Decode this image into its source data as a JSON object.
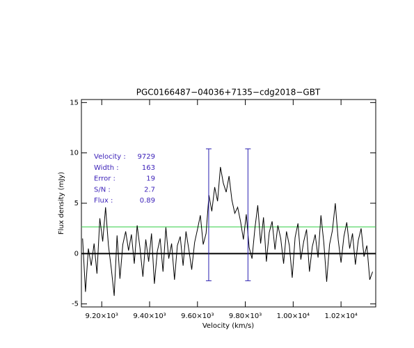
{
  "chart_data": {
    "type": "line",
    "title": "PGC0166487−04036+7135−cdg2018−GBT",
    "x_label": "Velocity (km/s)",
    "y_label": "Flux density (mJy)",
    "xlim": [
      9115,
      10345
    ],
    "ylim": [
      -5.3,
      15.3
    ],
    "xticks": [
      {
        "value": 9200,
        "label": "9.20×10³"
      },
      {
        "value": 9400,
        "label": "9.40×10³"
      },
      {
        "value": 9600,
        "label": "9.60×10³"
      },
      {
        "value": 9800,
        "label": "9.80×10³"
      },
      {
        "value": 10000,
        "label": "1.00×10⁴"
      },
      {
        "value": 10200,
        "label": "1.02×10⁴"
      }
    ],
    "yticks": [
      -5,
      0,
      5,
      10,
      15
    ],
    "series": [
      {
        "color": "#000000",
        "x": [
          9120,
          9132,
          9144,
          9156,
          9168,
          9180,
          9192,
          9204,
          9216,
          9228,
          9240,
          9252,
          9264,
          9276,
          9288,
          9300,
          9312,
          9324,
          9336,
          9348,
          9360,
          9372,
          9384,
          9396,
          9408,
          9420,
          9432,
          9444,
          9456,
          9468,
          9480,
          9492,
          9504,
          9516,
          9528,
          9540,
          9552,
          9564,
          9576,
          9588,
          9600,
          9612,
          9624,
          9636,
          9648,
          9660,
          9672,
          9684,
          9696,
          9708,
          9720,
          9732,
          9744,
          9756,
          9768,
          9780,
          9792,
          9804,
          9816,
          9828,
          9840,
          9852,
          9864,
          9876,
          9888,
          9900,
          9912,
          9924,
          9936,
          9948,
          9960,
          9972,
          9984,
          9996,
          10008,
          10020,
          10032,
          10044,
          10056,
          10068,
          10080,
          10092,
          10104,
          10116,
          10128,
          10140,
          10152,
          10164,
          10176,
          10188,
          10200,
          10212,
          10224,
          10236,
          10248,
          10260,
          10272,
          10284,
          10296,
          10308,
          10320,
          10332
        ],
        "values": [
          1.5,
          -3.8,
          0.5,
          -1.2,
          1.0,
          -2.0,
          3.5,
          1.2,
          4.6,
          0.8,
          -1.5,
          -4.2,
          1.8,
          -2.5,
          0.9,
          2.2,
          0.3,
          1.9,
          -1.0,
          2.8,
          0.5,
          -2.3,
          1.4,
          -0.8,
          2.0,
          -3.0,
          0.2,
          1.5,
          -1.8,
          2.6,
          -0.5,
          1.0,
          -2.6,
          0.8,
          1.7,
          -1.2,
          2.2,
          0.4,
          -1.6,
          1.1,
          2.4,
          3.8,
          0.9,
          2.0,
          5.8,
          4.2,
          6.6,
          5.2,
          8.6,
          7.0,
          6.1,
          7.7,
          5.3,
          4.0,
          4.6,
          3.2,
          1.4,
          3.9,
          0.6,
          -0.5,
          2.5,
          4.8,
          1.0,
          3.6,
          -0.8,
          2.1,
          3.2,
          0.4,
          2.8,
          1.5,
          -1.0,
          2.2,
          0.8,
          -2.4,
          1.6,
          3.0,
          -0.6,
          1.2,
          2.4,
          -1.8,
          0.7,
          1.9,
          -0.4,
          3.8,
          1.1,
          -2.8,
          0.9,
          2.3,
          5.0,
          1.4,
          -0.9,
          1.7,
          3.1,
          0.5,
          2.0,
          -1.1,
          1.3,
          2.5,
          -0.3,
          0.8,
          -2.6,
          -1.8
        ]
      }
    ],
    "zero_line_color": "#000000",
    "threshold": 2.65,
    "threshold_color": "#2ecc40",
    "markers": {
      "x": [
        9647,
        9811
      ],
      "ymin": -2.7,
      "ymax": 10.4,
      "color": "#2a1fb0"
    },
    "annotations": [
      {
        "label": "Velocity :",
        "value": 9729
      },
      {
        "label": "Width :",
        "value": 163
      },
      {
        "label": "Error :",
        "value": 19
      },
      {
        "label": "S/N :",
        "value": 2.7
      },
      {
        "label": "Flux :",
        "value": 0.89
      }
    ]
  }
}
